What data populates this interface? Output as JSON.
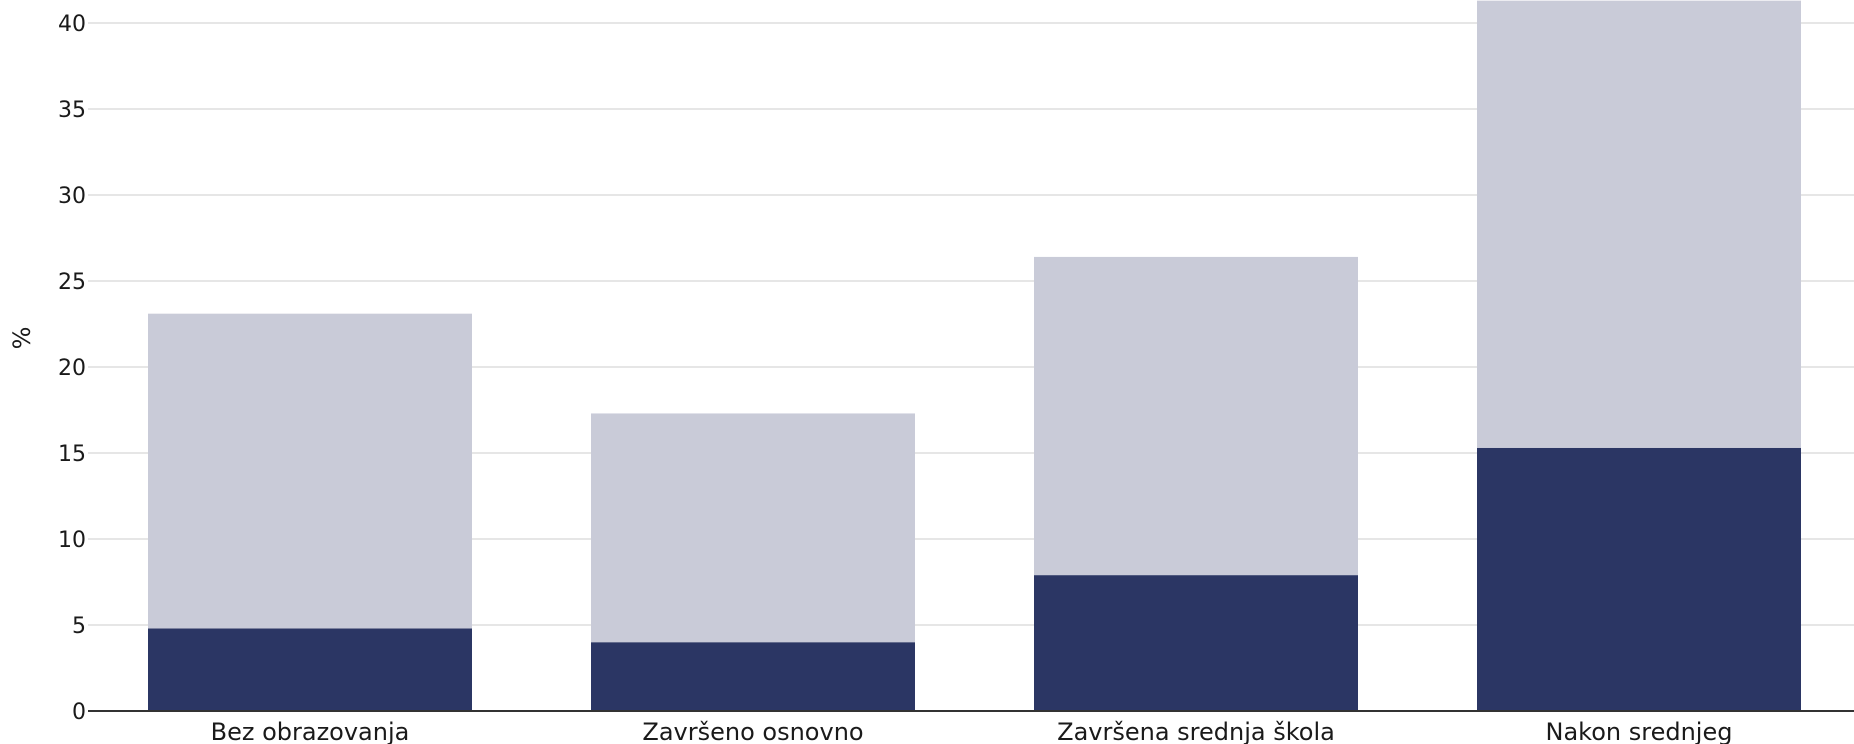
{
  "chart_data": {
    "type": "bar",
    "stacked": true,
    "title": "",
    "xlabel": "",
    "ylabel": "%",
    "ylim": [
      0,
      40
    ],
    "yticks": [
      0,
      5,
      10,
      15,
      20,
      25,
      30,
      35,
      40
    ],
    "grid": true,
    "categories": [
      "Bez obrazovanja",
      "Završeno osnovno",
      "Završena srednja škola",
      "Nakon srednjeg"
    ],
    "series": [
      {
        "color": "#2b3664",
        "values": [
          4.8,
          4.0,
          7.9,
          15.3
        ]
      },
      {
        "color": "#c9cbd8",
        "values": [
          18.3,
          13.3,
          18.5,
          26.0
        ]
      }
    ]
  }
}
